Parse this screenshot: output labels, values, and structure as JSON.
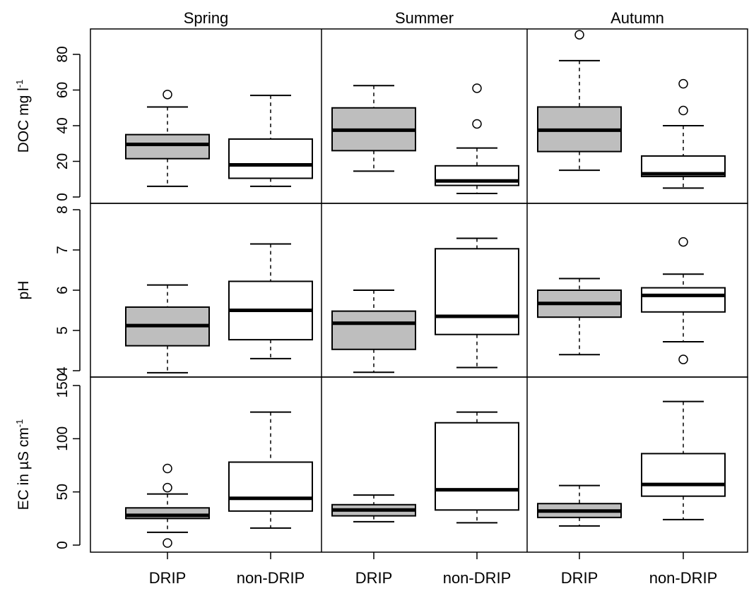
{
  "chart_data": {
    "type": "boxplot",
    "seasons": [
      "Spring",
      "Summer",
      "Autumn"
    ],
    "groups": [
      "DRIP",
      "non-DRIP"
    ],
    "group_fill": {
      "DRIP": "#bebebe",
      "non-DRIP": "#ffffff"
    },
    "panels": [
      {
        "id": "doc",
        "ylabel_main": "DOC mg l",
        "ylabel_sup": "-1",
        "ylim": [
          0,
          90
        ],
        "ticks": [
          0,
          20,
          40,
          60,
          80
        ],
        "tick_labels": [
          "0",
          "20",
          "40",
          "60",
          "80"
        ],
        "boxes": [
          {
            "season": "Spring",
            "group": "DRIP",
            "min": 6,
            "q1": 21.5,
            "median": 29.5,
            "q3": 35,
            "max": 50.5,
            "outliers": [
              57.5
            ]
          },
          {
            "season": "Spring",
            "group": "non-DRIP",
            "min": 6,
            "q1": 10.5,
            "median": 18,
            "q3": 32.5,
            "max": 57,
            "outliers": []
          },
          {
            "season": "Summer",
            "group": "DRIP",
            "min": 14.5,
            "q1": 26,
            "median": 37.5,
            "q3": 50,
            "max": 62.5,
            "outliers": []
          },
          {
            "season": "Summer",
            "group": "non-DRIP",
            "min": 2,
            "q1": 6.5,
            "median": 9,
            "q3": 17.5,
            "max": 27.5,
            "outliers": [
              41,
              61
            ]
          },
          {
            "season": "Autumn",
            "group": "DRIP",
            "min": 15,
            "q1": 25.5,
            "median": 37.5,
            "q3": 50.5,
            "max": 76.5,
            "outliers": [
              91
            ]
          },
          {
            "season": "Autumn",
            "group": "non-DRIP",
            "min": 5,
            "q1": 11.5,
            "median": 13,
            "q3": 23,
            "max": 40,
            "outliers": [
              48.5,
              63.5
            ]
          }
        ]
      },
      {
        "id": "ph",
        "ylabel_main": "pH",
        "ylabel_sup": "",
        "ylim": [
          3.85,
          8.2
        ],
        "ticks": [
          4,
          5,
          6,
          7,
          8
        ],
        "tick_labels": [
          "4",
          "5",
          "6",
          "7",
          "8"
        ],
        "boxes": [
          {
            "season": "Spring",
            "group": "DRIP",
            "min": 3.95,
            "q1": 4.62,
            "median": 5.12,
            "q3": 5.58,
            "max": 6.13,
            "outliers": []
          },
          {
            "season": "Spring",
            "group": "non-DRIP",
            "min": 4.3,
            "q1": 4.77,
            "median": 5.5,
            "q3": 6.22,
            "max": 7.15,
            "outliers": []
          },
          {
            "season": "Summer",
            "group": "DRIP",
            "min": 3.96,
            "q1": 4.53,
            "median": 5.18,
            "q3": 5.48,
            "max": 6.0,
            "outliers": []
          },
          {
            "season": "Summer",
            "group": "non-DRIP",
            "min": 4.08,
            "q1": 4.9,
            "median": 5.35,
            "q3": 7.03,
            "max": 7.29,
            "outliers": []
          },
          {
            "season": "Autumn",
            "group": "DRIP",
            "min": 4.4,
            "q1": 5.33,
            "median": 5.67,
            "q3": 6.0,
            "max": 6.29,
            "outliers": []
          },
          {
            "season": "Autumn",
            "group": "non-DRIP",
            "min": 4.72,
            "q1": 5.46,
            "median": 5.87,
            "q3": 6.06,
            "max": 6.4,
            "outliers": [
              7.2,
              4.28
            ]
          }
        ]
      },
      {
        "id": "ec",
        "ylabel_main": "EC in µS cm",
        "ylabel_sup": "-1",
        "ylim": [
          -5,
          158
        ],
        "ticks": [
          0,
          50,
          100,
          150
        ],
        "tick_labels": [
          "0",
          "50",
          "100",
          "150"
        ],
        "boxes": [
          {
            "season": "Spring",
            "group": "DRIP",
            "min": 12,
            "q1": 25,
            "median": 28,
            "q3": 35,
            "max": 48,
            "outliers": [
              72,
              54,
              2
            ]
          },
          {
            "season": "Spring",
            "group": "non-DRIP",
            "min": 16,
            "q1": 32,
            "median": 44,
            "q3": 78,
            "max": 125,
            "outliers": []
          },
          {
            "season": "Summer",
            "group": "DRIP",
            "min": 22,
            "q1": 27.5,
            "median": 33,
            "q3": 38,
            "max": 47,
            "outliers": []
          },
          {
            "season": "Summer",
            "group": "non-DRIP",
            "min": 21,
            "q1": 33,
            "median": 52,
            "q3": 115,
            "max": 125,
            "outliers": []
          },
          {
            "season": "Autumn",
            "group": "DRIP",
            "min": 18,
            "q1": 26,
            "median": 32,
            "q3": 39,
            "max": 56,
            "outliers": []
          },
          {
            "season": "Autumn",
            "group": "non-DRIP",
            "min": 24,
            "q1": 46,
            "median": 57,
            "q3": 86,
            "max": 135,
            "outliers": []
          }
        ]
      }
    ]
  }
}
